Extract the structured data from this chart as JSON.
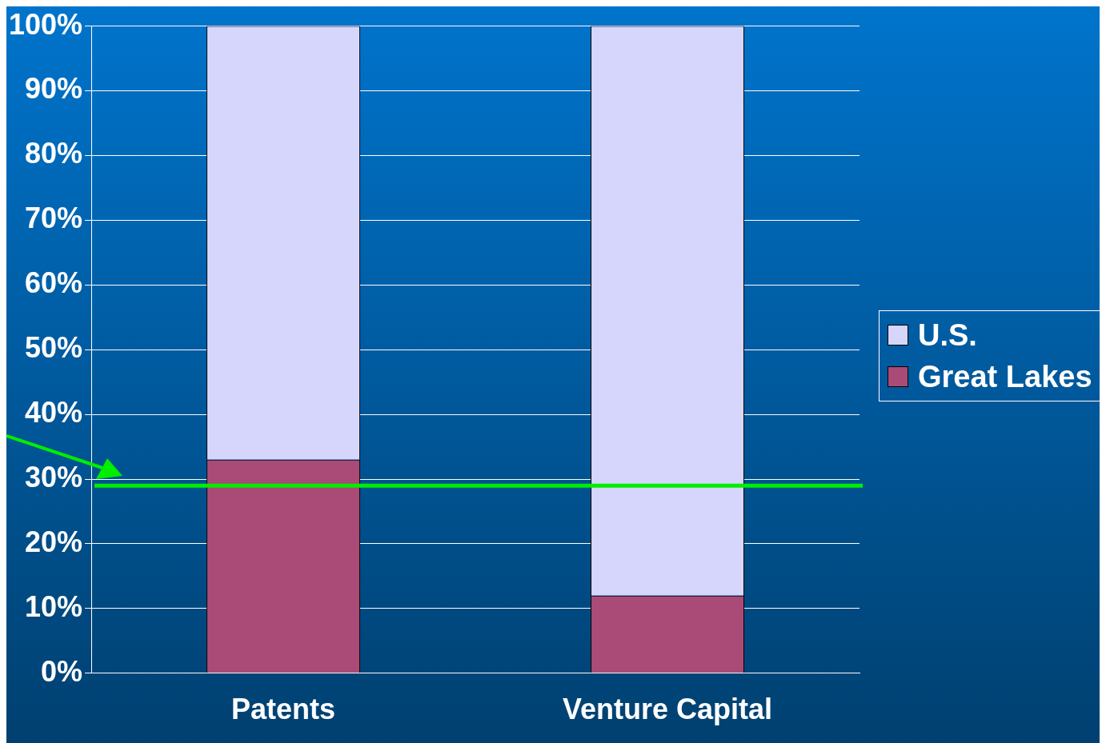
{
  "chart_data": {
    "type": "bar",
    "stacked": true,
    "categories": [
      "Patents",
      "Venture Capital"
    ],
    "series": [
      {
        "name": "Great Lakes",
        "color": "#aa4a76",
        "values": [
          33,
          12
        ]
      },
      {
        "name": "U.S.",
        "color": "#d6d6fc",
        "values": [
          67,
          88
        ]
      }
    ],
    "ylim": [
      0,
      100
    ],
    "yticks": [
      {
        "value": 0,
        "label": "0%"
      },
      {
        "value": 10,
        "label": "10%"
      },
      {
        "value": 20,
        "label": "20%"
      },
      {
        "value": 30,
        "label": "30%"
      },
      {
        "value": 40,
        "label": "40%"
      },
      {
        "value": 50,
        "label": "50%"
      },
      {
        "value": 60,
        "label": "60%"
      },
      {
        "value": 70,
        "label": "70%"
      },
      {
        "value": 80,
        "label": "80%"
      },
      {
        "value": 90,
        "label": "90%"
      },
      {
        "value": 100,
        "label": "100%"
      }
    ],
    "ref_lines": [
      {
        "axis": "y",
        "value": 29,
        "color": "#00ee00"
      }
    ],
    "grid": "y",
    "legend": "right"
  }
}
